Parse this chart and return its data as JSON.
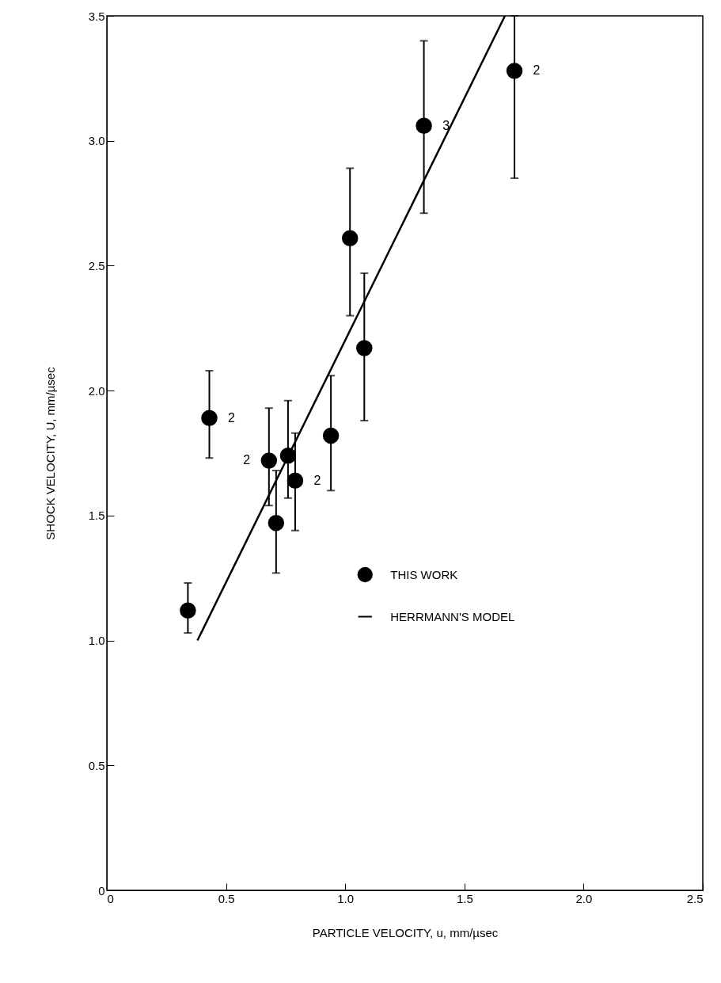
{
  "chart_data": {
    "type": "scatter",
    "xlabel": "PARTICLE VELOCITY, u, mm/µsec",
    "ylabel": "SHOCK VELOCITY, U, mm/µsec",
    "xlim": [
      0,
      2.5
    ],
    "ylim": [
      0,
      3.5
    ],
    "xticks": [
      0,
      0.5,
      {
        "value": 1,
        "label": "1.0"
      },
      1.5,
      {
        "value": 2,
        "label": "2.0"
      },
      2.5
    ],
    "yticks": [
      0,
      0.5,
      {
        "value": 1,
        "label": "1.0"
      },
      1.5,
      {
        "value": 2,
        "label": "2.0"
      },
      2.5,
      {
        "value": 3,
        "label": "3.0"
      },
      3.5
    ],
    "grid": false,
    "legend": "right",
    "series": [
      {
        "name": "THIS WORK",
        "marker": "circle",
        "color": "#000000",
        "x": [
          0.34,
          0.43,
          0.68,
          0.71,
          0.76,
          0.79,
          0.94,
          1.02,
          1.08,
          1.33,
          1.71
        ],
        "values": [
          1.12,
          1.89,
          1.72,
          1.47,
          1.74,
          1.64,
          1.82,
          2.61,
          2.17,
          3.06,
          3.28
        ],
        "errors": [
          [
            1.03,
            1.23
          ],
          [
            1.73,
            2.08
          ],
          [
            1.54,
            1.93
          ],
          [
            1.27,
            1.68
          ],
          [
            1.57,
            1.96
          ],
          [
            1.44,
            1.83
          ],
          [
            1.6,
            2.06
          ],
          [
            2.3,
            2.89
          ],
          [
            1.88,
            2.47
          ],
          [
            2.71,
            3.4
          ],
          [
            2.85,
            3.5
          ]
        ]
      },
      {
        "name": "HERRMANN'S MODEL",
        "type": "line",
        "marker": "none",
        "color": "#000000",
        "line_style": "solid",
        "x": [
          0.38,
          1.67
        ],
        "values": [
          1.0,
          3.5
        ]
      }
    ],
    "annotations": [
      {
        "text": "2",
        "x": 0.43,
        "y": 1.89
      },
      {
        "text": "2",
        "x": 0.68,
        "y": 1.72
      },
      {
        "text": "2",
        "x": 0.79,
        "y": 1.64
      },
      {
        "text": "3",
        "x": 1.33,
        "y": 3.06
      },
      {
        "text": "2",
        "x": 1.71,
        "y": 3.28
      }
    ]
  }
}
